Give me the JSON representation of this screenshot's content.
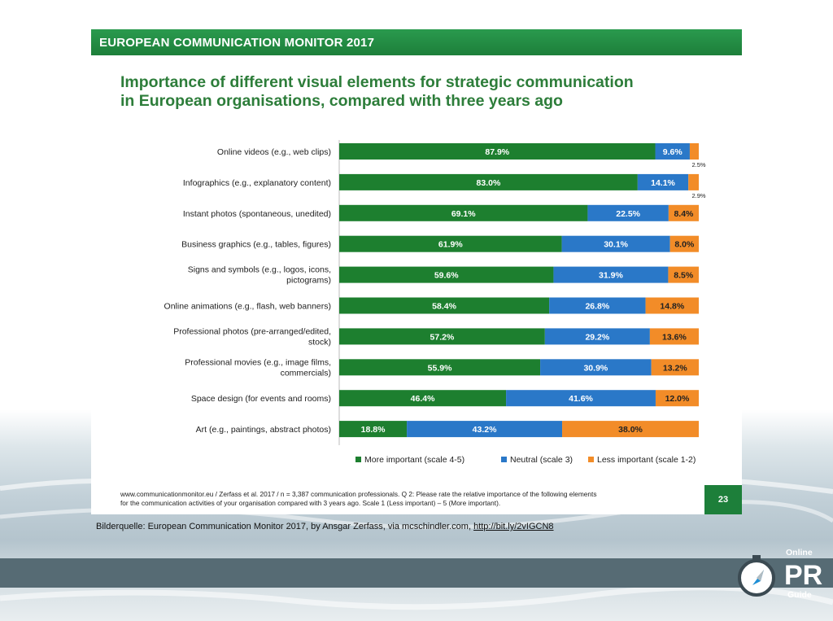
{
  "slide": {
    "header": "EUROPEAN COMMUNICATION MONITOR 2017",
    "title_line1": "Importance of different visual elements for strategic communication",
    "title_line2": "in European organisations, compared with three years ago",
    "footer_line1": "www.communicationmonitor.eu / Zerfass et al. 2017 / n = 3,387 communication professionals. Q 2: Please rate the relative importance of the following elements",
    "footer_line2": "for the communication activities of your organisation compared with 3 years ago. Scale 1 (Less important) – 5 (More important).",
    "page_number": "23"
  },
  "caption": {
    "text": "Bilderquelle: European Communication Monitor 2017, by Ansgar Zerfass, via mcschindler.com,",
    "link": "http://bit.ly/2vIGCN8"
  },
  "logo": {
    "line1": "Online",
    "line2": "PR",
    "line3": "Guide"
  },
  "colors": {
    "more": "#1d7f2f",
    "neutral": "#2a78c8",
    "less": "#f28c28",
    "header": "#1d7f3a",
    "title": "#2d7d3a"
  },
  "chart_data": {
    "type": "bar",
    "orientation": "horizontal",
    "stacked": true,
    "percent_format": "0.0%",
    "categories": [
      [
        "Online videos (e.g., web clips)"
      ],
      [
        "Infographics (e.g., explanatory content)"
      ],
      [
        "Instant photos (spontaneous, unedited)"
      ],
      [
        "Business graphics (e.g., tables, figures)"
      ],
      [
        "Signs and symbols (e.g., logos, icons,",
        "pictograms)"
      ],
      [
        "Online animations (e.g., flash, web banners)"
      ],
      [
        "Professional photos (pre-arranged/edited,",
        "stock)"
      ],
      [
        "Professional movies (e.g., image films,",
        "commercials)"
      ],
      [
        "Space design (for events and rooms)"
      ],
      [
        "Art (e.g., paintings, abstract photos)"
      ]
    ],
    "series": [
      {
        "name": "More important (scale 4-5)",
        "color": "#1d7f2f",
        "values": [
          87.9,
          83.0,
          69.1,
          61.9,
          59.6,
          58.4,
          57.2,
          55.9,
          46.4,
          18.8
        ]
      },
      {
        "name": "Neutral (scale 3)",
        "color": "#2a78c8",
        "values": [
          9.6,
          14.1,
          22.5,
          30.1,
          31.9,
          26.8,
          29.2,
          30.9,
          41.6,
          43.2
        ]
      },
      {
        "name": "Less important (scale 1-2)",
        "color": "#f28c28",
        "values": [
          2.5,
          2.9,
          8.4,
          8.0,
          8.5,
          14.8,
          13.6,
          13.2,
          12.0,
          38.0
        ]
      }
    ],
    "xlim": [
      0,
      100
    ],
    "legend_position": "bottom"
  }
}
